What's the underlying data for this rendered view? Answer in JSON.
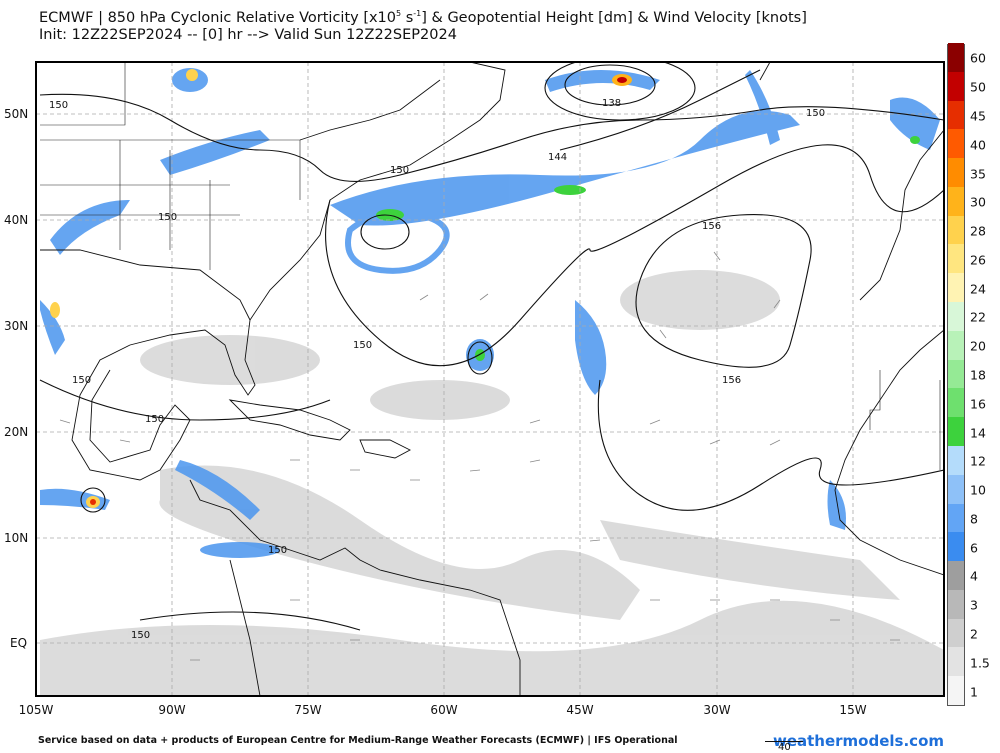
{
  "title_line1": "ECMWF | 850 hPa Cyclonic Relative Vorticity [x10",
  "title_exp": "5",
  "title_unit": " s",
  "title_exp2": "-1",
  "title_rest": "] & Geopotential Height [dm] & Wind Velocity [knots]",
  "title_line2": "Init: 12Z22SEP2024 -- [0] hr --> Valid Sun 12Z22SEP2024",
  "lat_labels": [
    "50N",
    "40N",
    "30N",
    "20N",
    "10N",
    "EQ"
  ],
  "lon_labels": [
    "105W",
    "90W",
    "75W",
    "60W",
    "45W",
    "30W",
    "15W"
  ],
  "height_labels": [
    "150",
    "150",
    "150",
    "150",
    "150",
    "150",
    "150",
    "150",
    "150",
    "144",
    "138",
    "156",
    "156",
    "150"
  ],
  "colorbar": {
    "labels": [
      "1",
      "1.5",
      "2",
      "3",
      "4",
      "6",
      "8",
      "10",
      "12",
      "14",
      "16",
      "18",
      "20",
      "22",
      "24",
      "26",
      "28",
      "30",
      "35",
      "40",
      "45",
      "50",
      "60"
    ],
    "colors": [
      "#f5f5f5",
      "#e3e3e3",
      "#cfcfcf",
      "#b8b8b8",
      "#9e9e9e",
      "#3a8cf0",
      "#62a5f5",
      "#8ec1f8",
      "#b4dcfb",
      "#3dd23d",
      "#6ee06e",
      "#95ea95",
      "#b8f2b8",
      "#d8f7d8",
      "#fff3b3",
      "#ffe680",
      "#ffd24d",
      "#ffb31a",
      "#ff8c00",
      "#ff5a00",
      "#e62e00",
      "#c20000",
      "#8b0000"
    ]
  },
  "footer": "Service based on data + products of European Centre for Medium-Range Weather Forecasts (ECMWF) | IFS Operational",
  "brand": "weathermodels.com",
  "legend_value": "40"
}
